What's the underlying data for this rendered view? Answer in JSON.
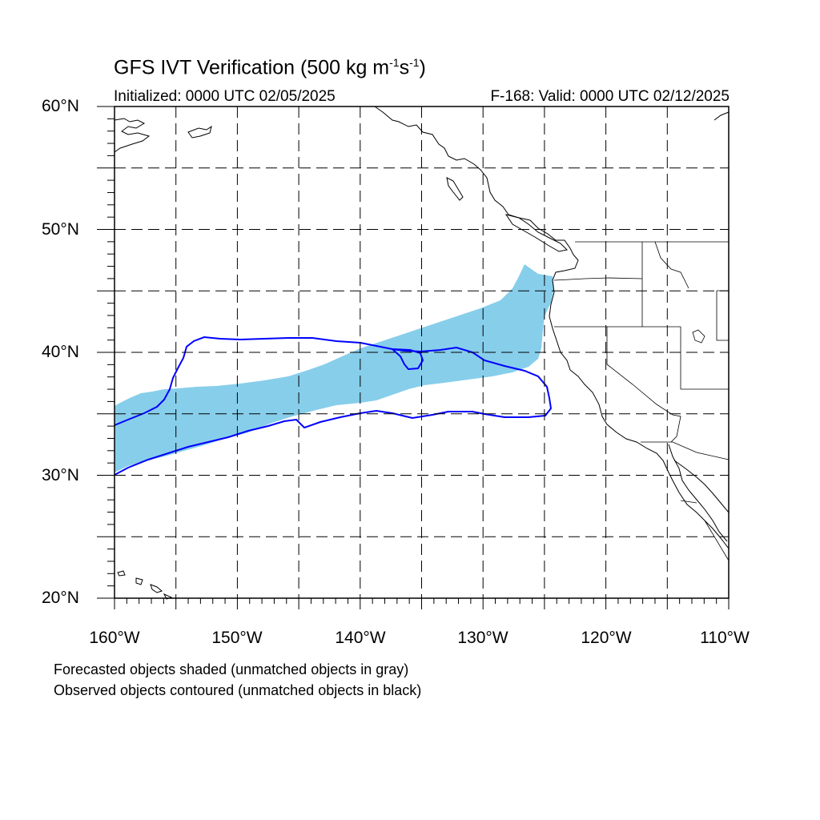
{
  "title": {
    "main": "GFS IVT Verification (500 kg m",
    "sup1": "-1",
    "mid": "s",
    "sup2": "-1",
    "end": ")"
  },
  "initialized_text": "Initialized: 0000 UTC 02/05/2025",
  "valid_text": "F-168: Valid: 0000 UTC 02/12/2025",
  "lat_labels": [
    "60°N",
    "50°N",
    "40°N",
    "30°N",
    "20°N"
  ],
  "lon_labels": [
    "160°W",
    "150°W",
    "140°W",
    "130°W",
    "120°W",
    "110°W"
  ],
  "legend_notes": [
    "Forecasted objects shaded (unmatched objects in gray)",
    "Observed objects contoured (unmatched objects in black)"
  ],
  "colors": {
    "forecast_fill": "#87CEEB",
    "observed_contour": "#0000FF",
    "coastline": "#000000",
    "gridline": "#000000"
  },
  "map_extent": {
    "lon_min": -160,
    "lon_max": -110,
    "lat_min": 20,
    "lat_max": 60,
    "grid_lon_step": 5,
    "grid_lat_step": 5
  }
}
